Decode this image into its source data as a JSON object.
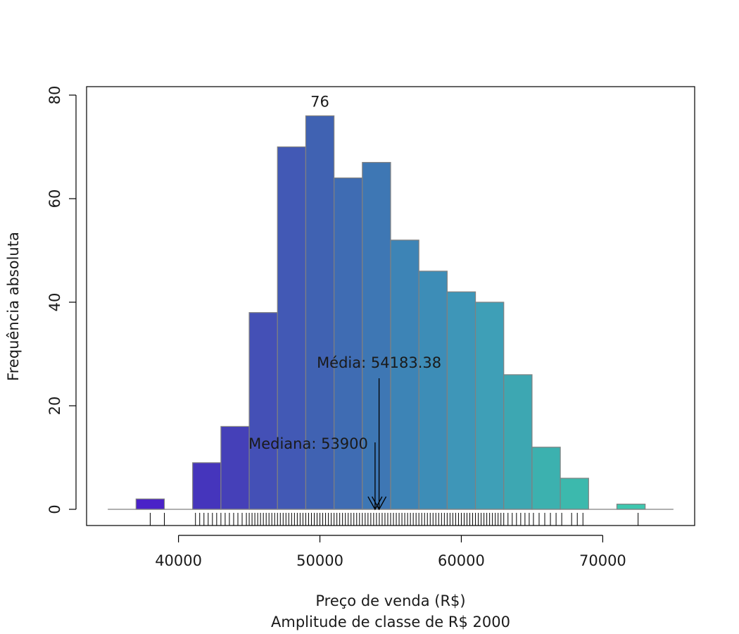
{
  "chart_data": {
    "type": "bar",
    "title": "",
    "xlabel": "Preço de venda (R$)",
    "xlabel_sub": "Amplitude de classe de R$ 2000",
    "ylabel": "Frequência absoluta",
    "xlim": [
      35000,
      75000
    ],
    "ylim": [
      0,
      80
    ],
    "x_ticks": [
      40000,
      50000,
      60000,
      70000
    ],
    "y_ticks": [
      0,
      20,
      40,
      60,
      80
    ],
    "bin_width": 2000,
    "bin_edges": [
      35000,
      37000,
      39000,
      41000,
      43000,
      45000,
      47000,
      49000,
      51000,
      53000,
      55000,
      57000,
      59000,
      61000,
      63000,
      65000,
      67000,
      69000,
      71000,
      73000,
      75000
    ],
    "values": [
      0,
      2,
      0,
      9,
      16,
      38,
      70,
      76,
      64,
      67,
      52,
      46,
      42,
      40,
      26,
      12,
      6,
      0,
      1,
      0
    ],
    "colors": [
      "#4a22c8",
      "#4a22c8",
      "#4830c0",
      "#4535bc",
      "#4540b8",
      "#4450b6",
      "#4259b5",
      "#4062b2",
      "#3f6cb3",
      "#3e77b4",
      "#3d84b6",
      "#3d8db7",
      "#3e96b8",
      "#3e9fb7",
      "#3da7b2",
      "#3cb1af",
      "#3cb9ad",
      "#3bc0ac",
      "#3ec7af",
      "#3ec7af"
    ],
    "max_label": "76",
    "mean": {
      "value": 54183.38,
      "label": "Média: 54183.38"
    },
    "median": {
      "value": 53900,
      "label": "Mediana: 53900"
    },
    "rug": [
      38000,
      39000,
      41200,
      41500,
      41800,
      42100,
      42400,
      42700,
      43000,
      43300,
      43600,
      43900,
      44200,
      44500,
      44800,
      45000,
      45200,
      45400,
      45600,
      45800,
      46000,
      46200,
      46400,
      46600,
      46800,
      47000,
      47200,
      47400,
      47600,
      47800,
      48000,
      48200,
      48400,
      48600,
      48800,
      49000,
      49200,
      49400,
      49600,
      49800,
      50000,
      50200,
      50400,
      50600,
      50800,
      51000,
      51200,
      51400,
      51600,
      51800,
      52000,
      52200,
      52400,
      52600,
      52800,
      53000,
      53200,
      53400,
      53600,
      53800,
      54000,
      54200,
      54400,
      54600,
      54800,
      55000,
      55200,
      55400,
      55600,
      55800,
      56000,
      56200,
      56400,
      56600,
      56800,
      57000,
      57200,
      57400,
      57600,
      57800,
      58000,
      58200,
      58400,
      58600,
      58800,
      59000,
      59200,
      59400,
      59600,
      59800,
      60000,
      60200,
      60400,
      60600,
      60800,
      61000,
      61200,
      61400,
      61600,
      61800,
      62000,
      62200,
      62400,
      62600,
      62800,
      63000,
      63300,
      63600,
      63900,
      64200,
      64500,
      64800,
      65100,
      65500,
      65900,
      66300,
      66700,
      67100,
      67800,
      68200,
      68600,
      72500
    ],
    "baseline": "on",
    "grid": "off",
    "legend": "none"
  }
}
